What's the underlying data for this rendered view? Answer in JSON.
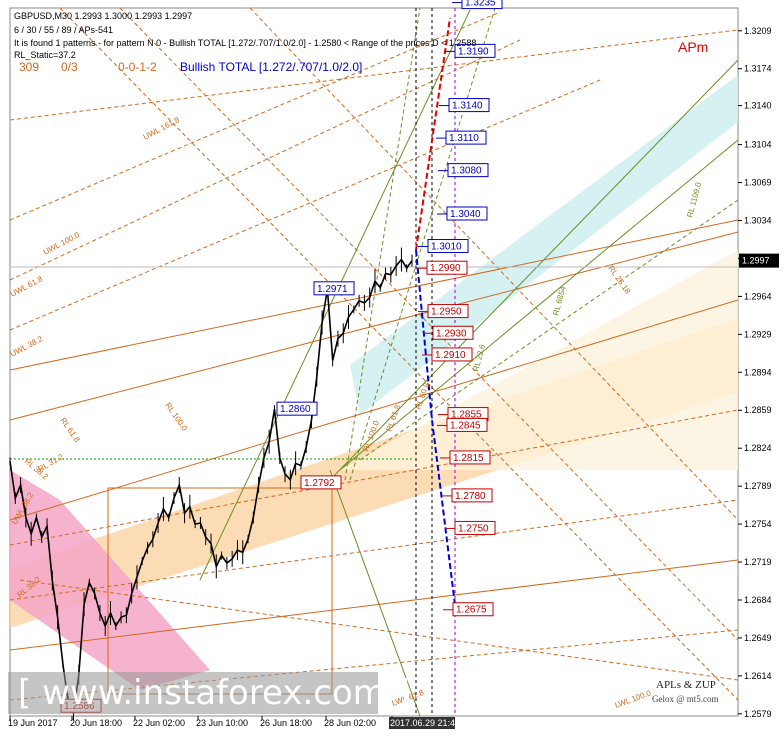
{
  "header": {
    "symbol_line": "GBPUSD,M30  1.2993 1.3000 1.2993 1.2997",
    "params_line": " 6 / 30 / 55 / 89 / APs-541",
    "pattern_line": "It is found 1 patterns  -  for pattern N 0 - Bullish TOTAL [1.272/.707/1.0/2.0] - 1.2580 < Range of the prices D < 1.2588",
    "static_line": "RL_Static=37.2",
    "count_a": "309",
    "count_b": "0/3",
    "code": "0-0-1-2",
    "pattern_name": "Bullish TOTAL [1.272/.707/1.0/2.0]"
  },
  "apm_label": "APm",
  "watermark": "[  www.instaforex.com  ]",
  "credits": [
    "APLs & ZUP",
    "Gelox @ mt5.com"
  ],
  "colors": {
    "up_leg": "#e00000",
    "down_leg": "#0000e0",
    "price_candles": "#000000",
    "fib_lines": "#d2691e",
    "channel_fill": "#fbd3a2",
    "pink_fill": "#f4a6c8",
    "cyan_fill": "#cfeef0",
    "current_price_bg": "#000000"
  },
  "chart_data": {
    "type": "line",
    "title": "GBPUSD,M30",
    "ylim": [
      1.2577,
      1.323
    ],
    "y_ticks": [
      1.3209,
      1.3174,
      1.314,
      1.3104,
      1.3069,
      1.3034,
      1.2999,
      1.2964,
      1.2929,
      1.2894,
      1.2859,
      1.2824,
      1.2789,
      1.2754,
      1.2719,
      1.2684,
      1.2649,
      1.2614,
      1.2579
    ],
    "x_ticks": [
      "19 Jun 2017",
      "20 Jun 18:00",
      "22 Jun 02:00",
      "23 Jun 10:00",
      "26 Jun 18:00",
      "28 Jun 02:00",
      "2017.06.29 21:45"
    ],
    "current_price": "1.2997",
    "price_series": {
      "name": "GBPUSD",
      "t": [
        0,
        4,
        8,
        12,
        16,
        20,
        24,
        28,
        32,
        36,
        40,
        44,
        48,
        52,
        56,
        60,
        64,
        68,
        72,
        76,
        80,
        84,
        88,
        92,
        96,
        100,
        104,
        108,
        112,
        116,
        120,
        124,
        128,
        132,
        136,
        140,
        144,
        148,
        152,
        156,
        160,
        164,
        168,
        172,
        176,
        180,
        184,
        188,
        192,
        196,
        200,
        204,
        208,
        212,
        216,
        220,
        224,
        228,
        232,
        236,
        240,
        244,
        248,
        252,
        256,
        260,
        264,
        268,
        272,
        276,
        280,
        284,
        288,
        292,
        296,
        300,
        304
      ],
      "y": [
        1.2812,
        1.2778,
        1.279,
        1.276,
        1.2745,
        1.276,
        1.2742,
        1.2752,
        1.2702,
        1.2668,
        1.2625,
        1.259,
        1.258,
        1.2615,
        1.268,
        1.27,
        1.269,
        1.2672,
        1.266,
        1.2672,
        1.266,
        1.2668,
        1.267,
        1.269,
        1.2705,
        1.272,
        1.2732,
        1.274,
        1.2755,
        1.2768,
        1.276,
        1.2778,
        1.279,
        1.2764,
        1.277,
        1.2754,
        1.2755,
        1.2742,
        1.2736,
        1.2715,
        1.2725,
        1.2718,
        1.2722,
        1.273,
        1.2728,
        1.274,
        1.276,
        1.279,
        1.2815,
        1.283,
        1.286,
        1.2815,
        1.28,
        1.2795,
        1.281,
        1.2808,
        1.2825,
        1.285,
        1.289,
        1.294,
        1.2971,
        1.2905,
        1.2925,
        1.293,
        1.2945,
        1.2952,
        1.296,
        1.2958,
        1.2963,
        1.2978,
        1.2972,
        1.2985,
        1.2984,
        1.2992,
        1.2998,
        1.299,
        1.2997
      ]
    },
    "levels_up": [
      "1.3235",
      "1.3190",
      "1.3140",
      "1.3110",
      "1.3080",
      "1.3040",
      "1.3010"
    ],
    "levels_down": [
      "1.2990",
      "1.2950",
      "1.2930",
      "1.2910",
      "1.2855",
      "1.2845",
      "1.2815",
      "1.2780",
      "1.2750",
      "1.2675"
    ],
    "pattern_points": [
      "1.2860",
      "1.2971",
      "1.2792",
      "1.2586"
    ],
    "line_labels": [
      "UWL 161.8",
      "UWL 100.0",
      "UWL 61.8",
      "UWL 38.2",
      "RL 100.0",
      "RL 61.8",
      "RL 38.2",
      "RL 100.0",
      "RL 61.8",
      "RL 60.8",
      "RL 23.6",
      "RL 6854",
      "RL 1109.0",
      "RL 26.18",
      "LWL 100.0",
      "LWL 61.8",
      "UWL 38.2",
      "RL 38.2",
      "RL 31.2"
    ]
  }
}
